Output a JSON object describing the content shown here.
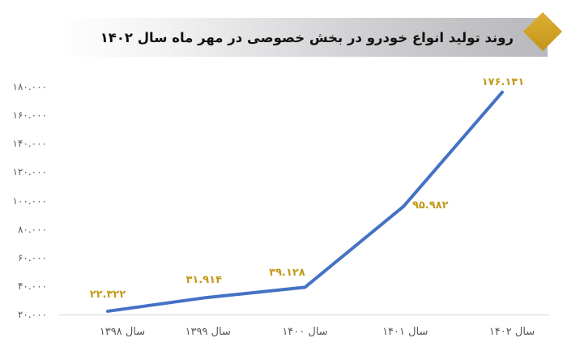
{
  "title": {
    "text": "روند تولید انواع خودرو در بخش خصوصی در مهر ماه سال ۱۴۰۲"
  },
  "colors": {
    "line": "#4472C4",
    "data_label": "#C39A1D",
    "axis_label": "#595959",
    "title_text": "#111111",
    "diamond": "#D0A125",
    "baseline": "#D9D9D9"
  },
  "chart_data": {
    "type": "line",
    "title": "روند تولید انواع خودرو در بخش خصوصی در مهر ماه سال ۱۴۰۲",
    "categories": [
      "سال ۱۳۹۸",
      "سال ۱۳۹۹",
      "سال ۱۴۰۰",
      "سال ۱۴۰۱",
      "سال ۱۴۰۲"
    ],
    "values": [
      22322,
      31914,
      39128,
      95982,
      176131
    ],
    "value_labels": [
      "۲۲.۳۲۲",
      "۳۱.۹۱۴",
      "۳۹.۱۲۸",
      "۹۵.۹۸۲",
      "۱۷۶.۱۳۱"
    ],
    "y_ticks": [
      20000,
      40000,
      60000,
      80000,
      100000,
      120000,
      140000,
      160000,
      180000
    ],
    "y_tick_labels": [
      "۲۰.۰۰۰",
      "۴۰.۰۰۰",
      "۶۰.۰۰۰",
      "۸۰.۰۰۰",
      "۱۰۰.۰۰۰",
      "۱۲۰.۰۰۰",
      "۱۴۰.۰۰۰",
      "۱۶۰.۰۰۰",
      "۱۸۰.۰۰۰"
    ],
    "ylim": [
      20000,
      180000
    ],
    "xlabel": "",
    "ylabel": "",
    "grid": false,
    "legend": false
  }
}
